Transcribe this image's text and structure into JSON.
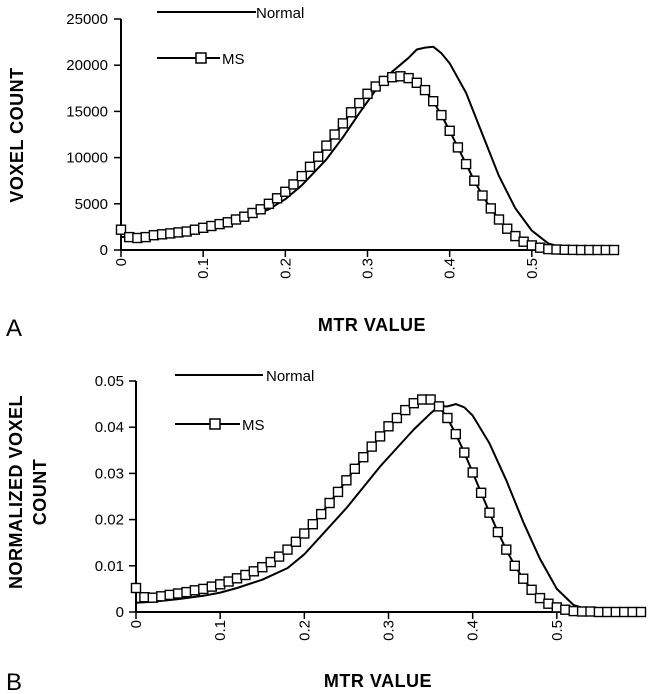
{
  "chart_data": [
    {
      "type": "line",
      "panel_label": "A",
      "xlabel": "MTR  VALUE",
      "ylabel": "VOXEL  COUNT",
      "xlim": [
        0,
        0.6
      ],
      "ylim": [
        0,
        25000
      ],
      "xticks": [
        "0",
        "0.1",
        "0.2",
        "0.3",
        "0.4",
        "0.5"
      ],
      "yticks": [
        "0",
        "5000",
        "10000",
        "15000",
        "20000",
        "25000"
      ],
      "legend": "top-left",
      "series": [
        {
          "name": "Normal",
          "marker": "none",
          "points": [
            [
              0,
              1400
            ],
            [
              0.02,
              1500
            ],
            [
              0.05,
              1700
            ],
            [
              0.08,
              2000
            ],
            [
              0.1,
              2300
            ],
            [
              0.12,
              2700
            ],
            [
              0.15,
              3400
            ],
            [
              0.18,
              4400
            ],
            [
              0.2,
              5500
            ],
            [
              0.22,
              7000
            ],
            [
              0.25,
              9800
            ],
            [
              0.27,
              12200
            ],
            [
              0.29,
              14800
            ],
            [
              0.31,
              17300
            ],
            [
              0.33,
              19300
            ],
            [
              0.35,
              20800
            ],
            [
              0.36,
              21700
            ],
            [
              0.37,
              21900
            ],
            [
              0.38,
              22000
            ],
            [
              0.39,
              21300
            ],
            [
              0.4,
              20200
            ],
            [
              0.42,
              17000
            ],
            [
              0.44,
              12500
            ],
            [
              0.46,
              8000
            ],
            [
              0.48,
              4500
            ],
            [
              0.5,
              2100
            ],
            [
              0.52,
              700
            ],
            [
              0.54,
              200
            ],
            [
              0.56,
              50
            ],
            [
              0.6,
              0
            ]
          ]
        },
        {
          "name": "MS",
          "marker": "square",
          "points": [
            [
              0,
              2200
            ],
            [
              0.01,
              1400
            ],
            [
              0.02,
              1300
            ],
            [
              0.03,
              1400
            ],
            [
              0.04,
              1600
            ],
            [
              0.05,
              1700
            ],
            [
              0.06,
              1800
            ],
            [
              0.07,
              1900
            ],
            [
              0.08,
              2000
            ],
            [
              0.09,
              2200
            ],
            [
              0.1,
              2400
            ],
            [
              0.11,
              2600
            ],
            [
              0.12,
              2800
            ],
            [
              0.13,
              3000
            ],
            [
              0.14,
              3300
            ],
            [
              0.15,
              3600
            ],
            [
              0.16,
              4000
            ],
            [
              0.17,
              4400
            ],
            [
              0.18,
              5000
            ],
            [
              0.19,
              5600
            ],
            [
              0.2,
              6300
            ],
            [
              0.21,
              7100
            ],
            [
              0.22,
              8000
            ],
            [
              0.23,
              9000
            ],
            [
              0.24,
              10100
            ],
            [
              0.25,
              11300
            ],
            [
              0.26,
              12500
            ],
            [
              0.27,
              13700
            ],
            [
              0.28,
              14900
            ],
            [
              0.29,
              15900
            ],
            [
              0.3,
              16900
            ],
            [
              0.31,
              17700
            ],
            [
              0.32,
              18300
            ],
            [
              0.33,
              18700
            ],
            [
              0.34,
              18800
            ],
            [
              0.35,
              18600
            ],
            [
              0.36,
              18100
            ],
            [
              0.37,
              17300
            ],
            [
              0.38,
              16100
            ],
            [
              0.39,
              14600
            ],
            [
              0.4,
              12900
            ],
            [
              0.41,
              11100
            ],
            [
              0.42,
              9300
            ],
            [
              0.43,
              7500
            ],
            [
              0.44,
              5900
            ],
            [
              0.45,
              4500
            ],
            [
              0.46,
              3300
            ],
            [
              0.47,
              2300
            ],
            [
              0.48,
              1500
            ],
            [
              0.49,
              900
            ],
            [
              0.5,
              500
            ],
            [
              0.51,
              250
            ],
            [
              0.52,
              100
            ],
            [
              0.53,
              50
            ],
            [
              0.54,
              20
            ],
            [
              0.55,
              10
            ],
            [
              0.56,
              5
            ],
            [
              0.57,
              2
            ],
            [
              0.58,
              0
            ],
            [
              0.59,
              0
            ],
            [
              0.6,
              0
            ]
          ]
        }
      ]
    },
    {
      "type": "line",
      "panel_label": "B",
      "xlabel": "MTR  VALUE",
      "ylabel": "NORMALIZED VOXEL COUNT",
      "ylabel_lines": [
        "NORMALIZED VOXEL",
        "COUNT"
      ],
      "xlim": [
        0,
        0.6
      ],
      "ylim": [
        0,
        0.05
      ],
      "xticks": [
        "0",
        "0.1",
        "0.2",
        "0.3",
        "0.4",
        "0.5"
      ],
      "yticks": [
        "0",
        "0.01",
        "0.02",
        "0.03",
        "0.04",
        "0.05"
      ],
      "legend": "top-left",
      "series": [
        {
          "name": "Normal",
          "marker": "none",
          "points": [
            [
              0,
              0.002
            ],
            [
              0.02,
              0.0022
            ],
            [
              0.05,
              0.0028
            ],
            [
              0.08,
              0.0035
            ],
            [
              0.1,
              0.0042
            ],
            [
              0.12,
              0.0052
            ],
            [
              0.15,
              0.007
            ],
            [
              0.18,
              0.0095
            ],
            [
              0.2,
              0.0125
            ],
            [
              0.22,
              0.0165
            ],
            [
              0.25,
              0.0225
            ],
            [
              0.27,
              0.027
            ],
            [
              0.29,
              0.0315
            ],
            [
              0.31,
              0.0355
            ],
            [
              0.33,
              0.0395
            ],
            [
              0.35,
              0.043
            ],
            [
              0.36,
              0.0445
            ],
            [
              0.37,
              0.0445
            ],
            [
              0.38,
              0.045
            ],
            [
              0.39,
              0.0443
            ],
            [
              0.4,
              0.0425
            ],
            [
              0.42,
              0.0365
            ],
            [
              0.44,
              0.0285
            ],
            [
              0.46,
              0.0195
            ],
            [
              0.48,
              0.0115
            ],
            [
              0.5,
              0.005
            ],
            [
              0.52,
              0.0015
            ],
            [
              0.54,
              0.0004
            ],
            [
              0.56,
              0.0001
            ],
            [
              0.6,
              0
            ]
          ]
        },
        {
          "name": "MS",
          "marker": "square",
          "points": [
            [
              0,
              0.0052
            ],
            [
              0.01,
              0.0032
            ],
            [
              0.02,
              0.0031
            ],
            [
              0.03,
              0.0034
            ],
            [
              0.04,
              0.0037
            ],
            [
              0.05,
              0.004
            ],
            [
              0.06,
              0.0043
            ],
            [
              0.07,
              0.0047
            ],
            [
              0.08,
              0.005
            ],
            [
              0.09,
              0.0055
            ],
            [
              0.1,
              0.006
            ],
            [
              0.11,
              0.0066
            ],
            [
              0.12,
              0.0073
            ],
            [
              0.13,
              0.008
            ],
            [
              0.14,
              0.0088
            ],
            [
              0.15,
              0.0097
            ],
            [
              0.16,
              0.0108
            ],
            [
              0.17,
              0.012
            ],
            [
              0.18,
              0.0135
            ],
            [
              0.19,
              0.0152
            ],
            [
              0.2,
              0.017
            ],
            [
              0.21,
              0.019
            ],
            [
              0.22,
              0.0212
            ],
            [
              0.23,
              0.0236
            ],
            [
              0.24,
              0.026
            ],
            [
              0.25,
              0.0285
            ],
            [
              0.26,
              0.031
            ],
            [
              0.27,
              0.0335
            ],
            [
              0.28,
              0.0358
            ],
            [
              0.29,
              0.038
            ],
            [
              0.3,
              0.0402
            ],
            [
              0.31,
              0.042
            ],
            [
              0.32,
              0.0437
            ],
            [
              0.33,
              0.0452
            ],
            [
              0.34,
              0.046
            ],
            [
              0.35,
              0.046
            ],
            [
              0.36,
              0.0445
            ],
            [
              0.37,
              0.042
            ],
            [
              0.38,
              0.0385
            ],
            [
              0.39,
              0.0345
            ],
            [
              0.4,
              0.0302
            ],
            [
              0.41,
              0.0258
            ],
            [
              0.42,
              0.0215
            ],
            [
              0.43,
              0.0173
            ],
            [
              0.44,
              0.0135
            ],
            [
              0.45,
              0.01
            ],
            [
              0.46,
              0.0072
            ],
            [
              0.47,
              0.0048
            ],
            [
              0.48,
              0.003
            ],
            [
              0.49,
              0.0018
            ],
            [
              0.5,
              0.001
            ],
            [
              0.51,
              0.0005
            ],
            [
              0.52,
              0.0002
            ],
            [
              0.53,
              0.0001
            ],
            [
              0.54,
              0.0001
            ],
            [
              0.55,
              0
            ],
            [
              0.56,
              0
            ],
            [
              0.57,
              0
            ],
            [
              0.58,
              0
            ],
            [
              0.59,
              0
            ],
            [
              0.6,
              0
            ]
          ]
        }
      ]
    }
  ]
}
